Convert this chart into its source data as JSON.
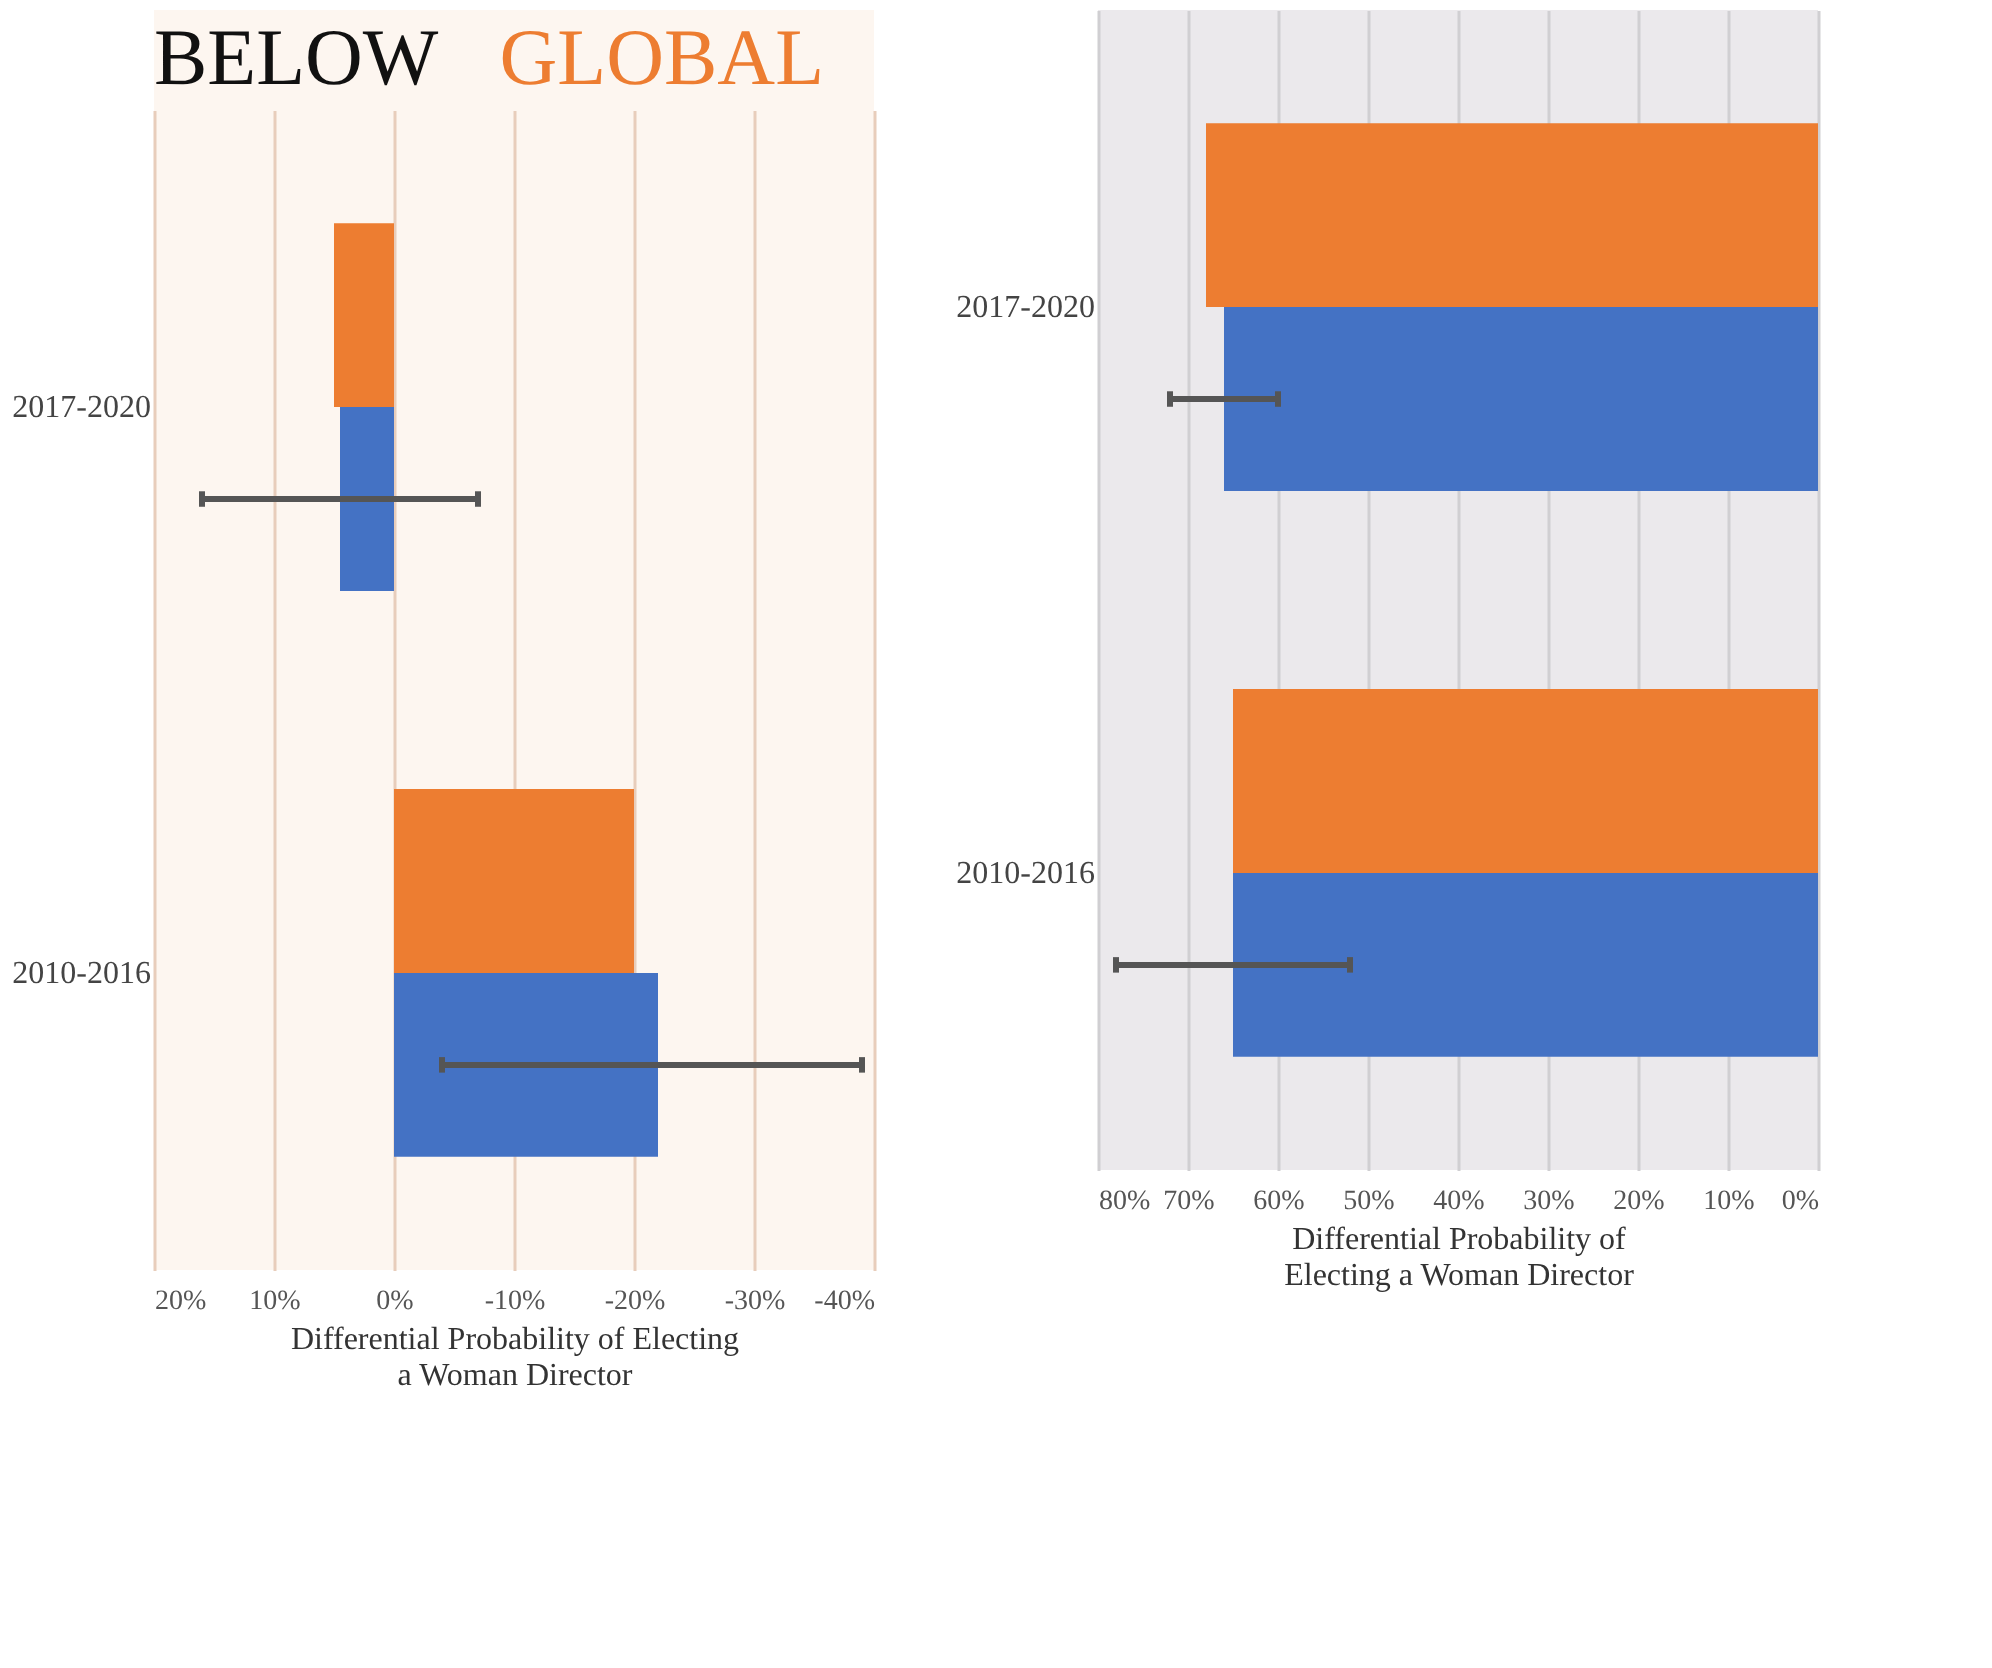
{
  "chart_data": [
    {
      "type": "bar",
      "orientation": "horizontal",
      "title": "BELOW GLOBAL",
      "xlabel": "Differential Probability of Electing\na Woman Director",
      "categories": [
        "2017-2020",
        "2010-2016"
      ],
      "series": [
        {
          "color": "#ed7d31",
          "values": [
            5,
            -20
          ]
        },
        {
          "color": "#4472c4",
          "values": [
            4.5,
            -22
          ],
          "errors": [
            [
              -7,
              16
            ],
            [
              -39,
              -4
            ]
          ]
        }
      ],
      "xlim": [
        20,
        -40
      ],
      "xticks": [
        {
          "value": 20,
          "label": "20%"
        },
        {
          "value": 10,
          "label": "10%"
        },
        {
          "value": 0,
          "label": "0%"
        },
        {
          "value": -10,
          "label": "-10%"
        },
        {
          "value": -20,
          "label": "-20%"
        },
        {
          "value": -30,
          "label": "-30%"
        },
        {
          "value": -40,
          "label": "-40%"
        }
      ],
      "grid": "x"
    },
    {
      "type": "bar",
      "orientation": "horizontal",
      "xlabel": "Differential Probability of\nElecting a Woman Director",
      "categories": [
        "2017-2020",
        "2010-2016"
      ],
      "series": [
        {
          "color": "#ed7d31",
          "values": [
            68,
            65
          ]
        },
        {
          "color": "#4472c4",
          "values": [
            66,
            65
          ],
          "errors": [
            [
              60,
              72
            ],
            [
              52,
              78
            ]
          ]
        }
      ],
      "xlim": [
        80,
        0
      ],
      "xticks": [
        {
          "value": 80,
          "label": "80%"
        },
        {
          "value": 70,
          "label": "70%"
        },
        {
          "value": 60,
          "label": "60%"
        },
        {
          "value": 50,
          "label": "50%"
        },
        {
          "value": 40,
          "label": "40%"
        },
        {
          "value": 30,
          "label": "30%"
        },
        {
          "value": 20,
          "label": "20%"
        },
        {
          "value": 10,
          "label": "10%"
        },
        {
          "value": 0,
          "label": "0%"
        }
      ],
      "grid": "x"
    }
  ]
}
